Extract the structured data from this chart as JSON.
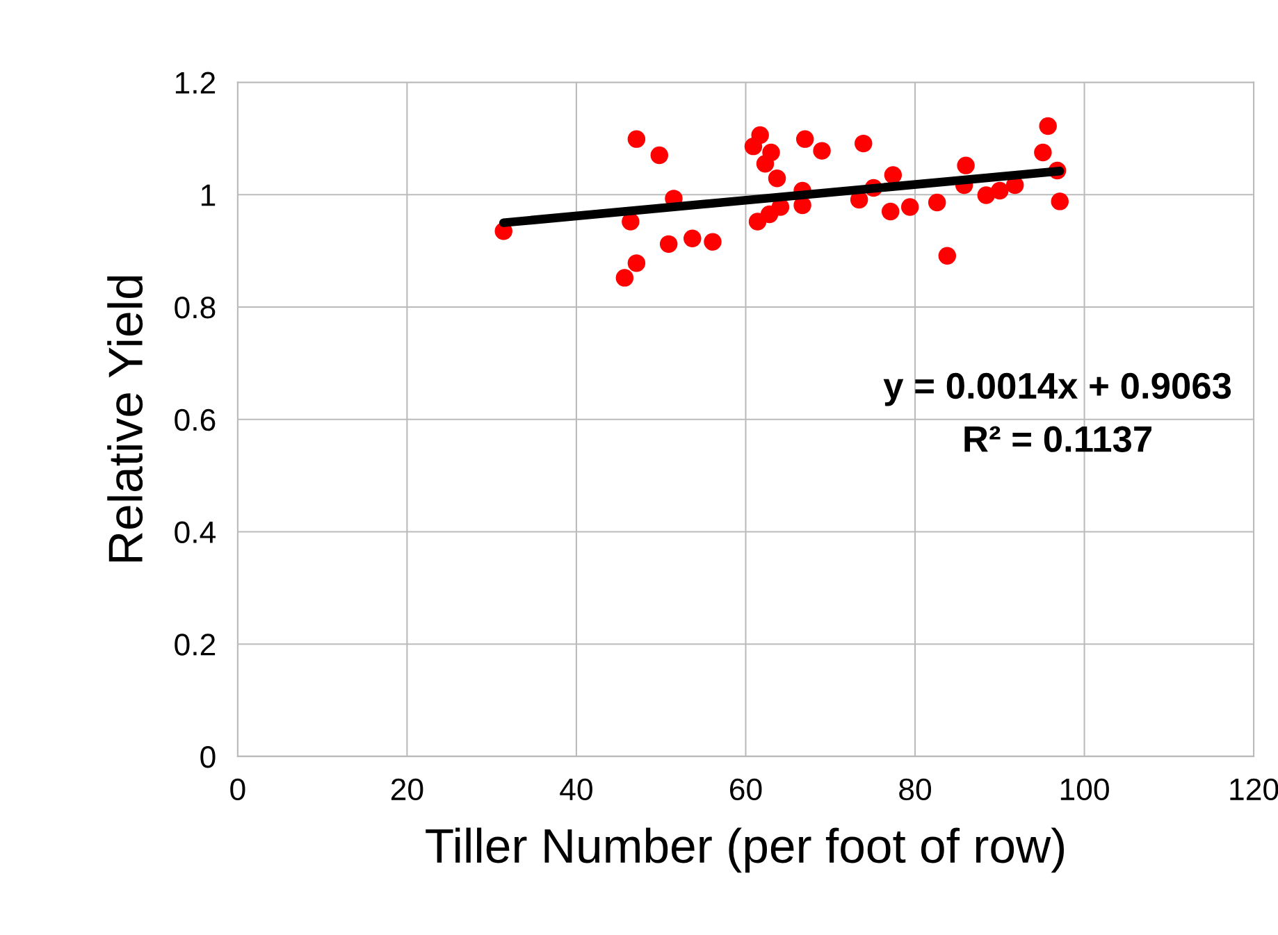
{
  "chart_data": {
    "type": "scatter",
    "xlabel": "Tiller Number (per foot of row)",
    "ylabel": "Relative Yield",
    "annotations": [
      "y = 0.0014x + 0.9063",
      "R² = 0.1137"
    ],
    "series": [
      {
        "color": "#ff0000",
        "marker": "circle",
        "x": [
          31.4,
          46.4,
          47.1,
          45.7,
          47.1,
          49.8,
          51.5,
          50.9,
          53.7,
          56.1,
          60.9,
          61.7,
          63.0,
          62.3,
          63.7,
          61.4,
          62.8,
          64.1,
          66.7,
          66.7,
          67.0,
          69.0,
          73.9,
          73.4,
          75.1,
          77.4,
          77.1,
          79.4,
          82.6,
          83.8,
          86.0,
          85.8,
          88.4,
          90.0,
          91.8,
          95.1,
          95.7,
          96.8,
          97.1
        ],
        "values": [
          0.935,
          0.952,
          1.099,
          0.852,
          0.878,
          1.07,
          0.993,
          0.912,
          0.922,
          0.916,
          1.086,
          1.106,
          1.075,
          1.055,
          1.029,
          0.952,
          0.965,
          0.978,
          1.007,
          0.981,
          1.099,
          1.078,
          1.091,
          0.991,
          1.012,
          1.035,
          0.97,
          0.978,
          0.986,
          0.891,
          1.052,
          1.017,
          0.999,
          1.007,
          1.017,
          1.075,
          1.122,
          1.043,
          0.988
        ]
      },
      {
        "type": "line",
        "color": "#000000",
        "line_style": "solid",
        "x": [
          31.4,
          97.1
        ],
        "values": [
          0.95,
          1.042
        ]
      }
    ],
    "xlim": [
      0,
      120
    ],
    "xticks": [
      0,
      20,
      40,
      60,
      80,
      100,
      120
    ],
    "ylim": [
      0,
      1.2
    ],
    "yticks": [
      0,
      0.2,
      0.4,
      0.6,
      0.8,
      1,
      1.2
    ],
    "grid": true
  }
}
